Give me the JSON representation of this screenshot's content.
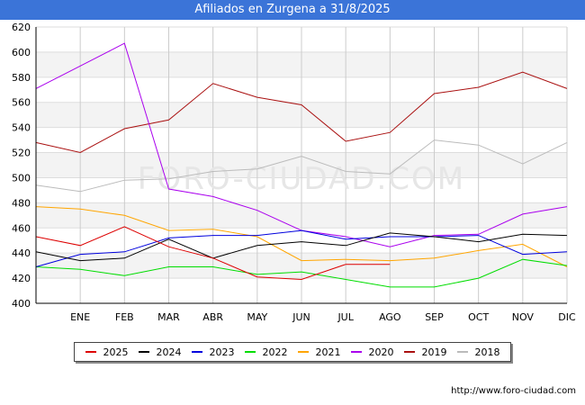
{
  "title": "Afiliados en Zurgena a 31/8/2025",
  "watermark": "FORO-CIUDAD.COM",
  "source_url": "http://www.foro-ciudad.com",
  "chart_data": {
    "type": "line",
    "title": "Afiliados en Zurgena a 31/8/2025",
    "categories": [
      "",
      "ENE",
      "FEB",
      "MAR",
      "ABR",
      "MAY",
      "JUN",
      "JUL",
      "AGO",
      "SEP",
      "OCT",
      "NOV",
      "DIC"
    ],
    "ylim": [
      400,
      620
    ],
    "yticks": [
      400,
      420,
      440,
      460,
      480,
      500,
      520,
      540,
      560,
      580,
      600,
      620
    ],
    "grid": true,
    "legend_position": "bottom",
    "series": [
      {
        "name": "2025",
        "color": "#dd0000",
        "values": [
          453,
          446,
          461,
          445,
          436,
          421,
          419,
          431,
          431,
          null,
          null,
          null,
          null
        ]
      },
      {
        "name": "2024",
        "color": "#000000",
        "values": [
          441,
          434,
          436,
          451,
          436,
          446,
          449,
          446,
          456,
          453,
          449,
          455,
          454
        ]
      },
      {
        "name": "2023",
        "color": "#0000dd",
        "values": [
          429,
          439,
          441,
          452,
          454,
          454,
          458,
          451,
          453,
          453,
          454,
          439,
          441
        ]
      },
      {
        "name": "2022",
        "color": "#00dd00",
        "values": [
          429,
          427,
          422,
          429,
          429,
          423,
          425,
          419,
          413,
          413,
          420,
          435,
          430
        ]
      },
      {
        "name": "2021",
        "color": "#ffa500",
        "values": [
          477,
          475,
          470,
          458,
          459,
          453,
          434,
          435,
          434,
          436,
          442,
          447,
          429
        ]
      },
      {
        "name": "2020",
        "color": "#aa00ee",
        "values": [
          571,
          589,
          607,
          491,
          485,
          474,
          458,
          453,
          445,
          454,
          455,
          471,
          477
        ]
      },
      {
        "name": "2019",
        "color": "#aa1111",
        "values": [
          528,
          520,
          539,
          546,
          575,
          564,
          558,
          529,
          536,
          567,
          572,
          584,
          571
        ]
      },
      {
        "name": "2018",
        "color": "#bbbbbb",
        "values": [
          494,
          489,
          498,
          499,
          505,
          507,
          517,
          505,
          503,
          530,
          526,
          511,
          528
        ]
      }
    ]
  }
}
